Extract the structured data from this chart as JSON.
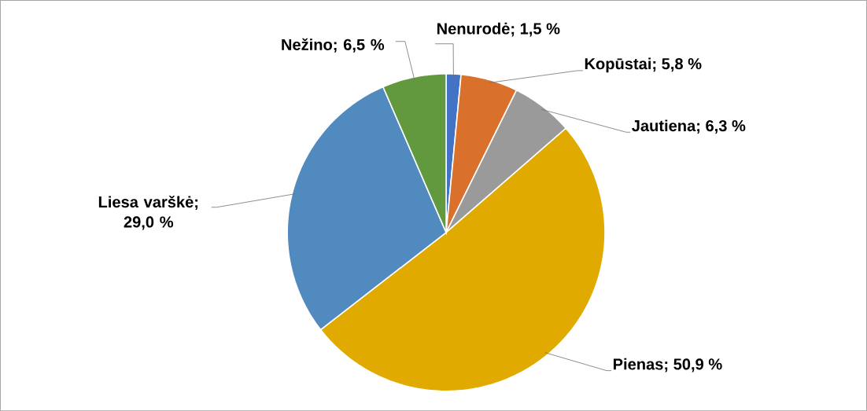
{
  "chart_data": {
    "type": "pie",
    "categories": [
      "Nenurodė; 1,5 %",
      "Kopūstai; 5,8 %",
      "Jautiena; 6,3 %",
      "Pienas; 50,9 %",
      "Liesa varškė; 29,0 %",
      "Nežino; 6,5 %"
    ],
    "values": [
      1.5,
      5.8,
      6.3,
      50.9,
      29.0,
      6.5
    ],
    "colors": [
      "#4472c4",
      "#d9702b",
      "#9a9a9a",
      "#e0aa00",
      "#508abf",
      "#62993e"
    ]
  }
}
